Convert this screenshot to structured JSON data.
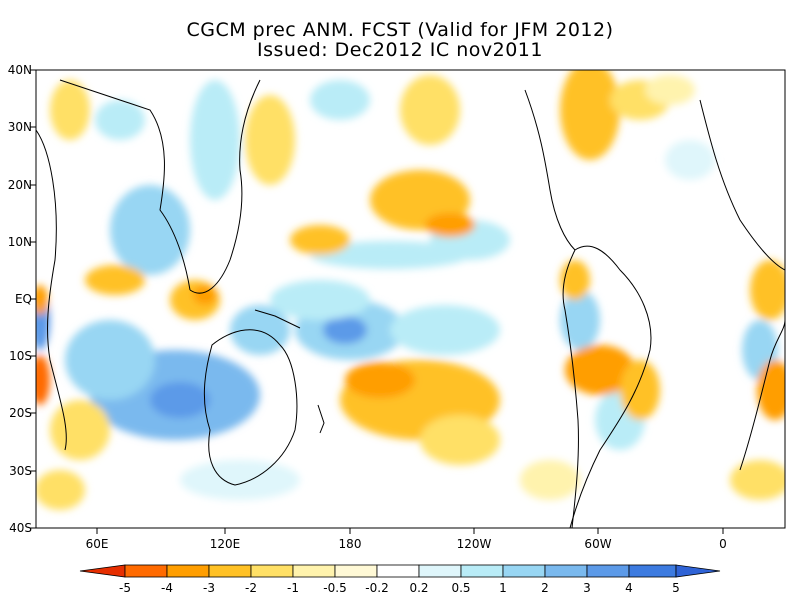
{
  "title": {
    "line1": "CGCM prec ANM. FCST  (Valid for JFM 2012)",
    "line2": "Issued:  Dec2012 IC nov2011"
  },
  "map": {
    "lat_labels": [
      "40N",
      "30N",
      "20N",
      "10N",
      "EQ",
      "10S",
      "20S",
      "30S",
      "40S"
    ],
    "lon_labels": [
      "60E",
      "120E",
      "180",
      "120W",
      "60W",
      "0"
    ]
  },
  "colorbar": {
    "labels": [
      "-5",
      "-4",
      "-3",
      "-2",
      "-1",
      "-0.5",
      "-0.2",
      "0.2",
      "0.5",
      "1",
      "2",
      "3",
      "4",
      "5"
    ],
    "colors": [
      "#e62e00",
      "#ff6a00",
      "#ff9e00",
      "#ffc125",
      "#ffe066",
      "#fff3ad",
      "#ffffff",
      "#dff6fb",
      "#b9ecf7",
      "#98d6f3",
      "#7ab9ee",
      "#5c9ae8",
      "#3d7be0"
    ]
  }
}
